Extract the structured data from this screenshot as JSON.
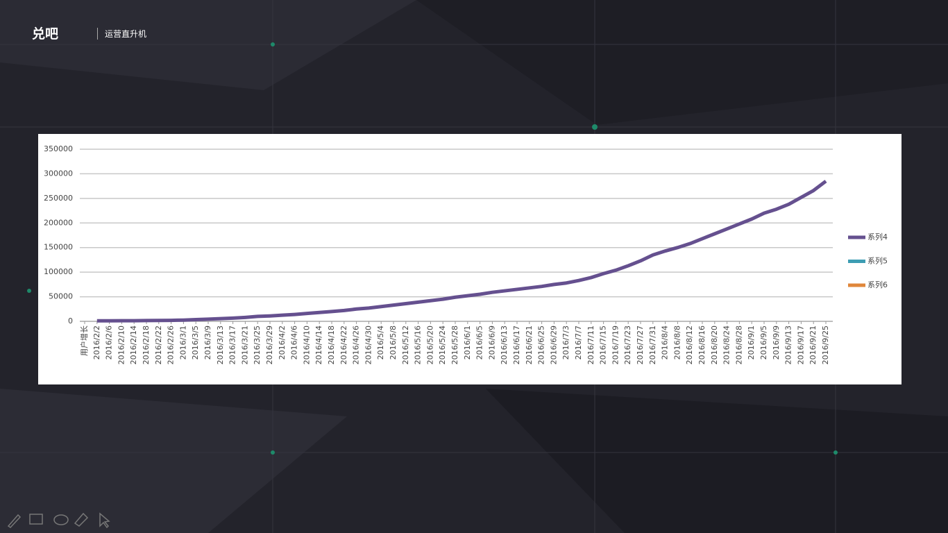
{
  "header": {
    "logo": "兑吧",
    "tagline": "运营直升机"
  },
  "chart_data": {
    "type": "line",
    "categories": [
      "用户增长",
      "2016/2/2",
      "2016/2/6",
      "2016/2/10",
      "2016/2/14",
      "2016/2/18",
      "2016/2/22",
      "2016/2/26",
      "2016/3/1",
      "2016/3/5",
      "2016/3/9",
      "2016/3/13",
      "2016/3/17",
      "2016/3/21",
      "2016/3/25",
      "2016/3/29",
      "2016/4/2",
      "2016/4/6",
      "2016/4/10",
      "2016/4/14",
      "2016/4/18",
      "2016/4/22",
      "2016/4/26",
      "2016/4/30",
      "2016/5/4",
      "2016/5/8",
      "2016/5/12",
      "2016/5/16",
      "2016/5/20",
      "2016/5/24",
      "2016/5/28",
      "2016/6/1",
      "2016/6/5",
      "2016/6/9",
      "2016/6/13",
      "2016/6/17",
      "2016/6/21",
      "2016/6/25",
      "2016/6/29",
      "2016/7/3",
      "2016/7/7",
      "2016/7/11",
      "2016/7/15",
      "2016/7/19",
      "2016/7/23",
      "2016/7/27",
      "2016/7/31",
      "2016/8/4",
      "2016/8/8",
      "2016/8/12",
      "2016/8/16",
      "2016/8/20",
      "2016/8/24",
      "2016/8/28",
      "2016/9/1",
      "2016/9/5",
      "2016/9/9",
      "2016/9/13",
      "2016/9/17",
      "2016/9/21",
      "2016/9/25"
    ],
    "series": [
      {
        "name": "系列4",
        "color": "#65508f",
        "values": [
          null,
          1000,
          1000,
          1200,
          1300,
          1500,
          1700,
          2000,
          2500,
          3500,
          4500,
          5500,
          6500,
          8000,
          10000,
          11000,
          12500,
          14000,
          16000,
          18000,
          20000,
          22000,
          25000,
          27000,
          30000,
          33000,
          36000,
          39000,
          42000,
          45000,
          49000,
          52000,
          55000,
          59000,
          62000,
          65000,
          68000,
          71000,
          75000,
          78000,
          83000,
          89000,
          97000,
          104000,
          113000,
          123000,
          135000,
          143000,
          150000,
          158000,
          168000,
          178000,
          188000,
          198000,
          208000,
          220000,
          228000,
          238000,
          252000,
          266000,
          285000
        ]
      },
      {
        "name": "系列5",
        "color": "#3d9db3",
        "values": [
          null,
          null,
          null,
          null,
          null,
          null,
          null,
          null,
          null,
          null,
          null,
          null,
          null,
          null,
          null,
          null,
          null,
          null,
          null,
          null,
          null,
          null,
          null,
          null,
          null,
          null,
          null,
          null,
          null,
          null,
          null,
          null,
          null,
          null,
          null,
          null,
          null,
          null,
          null,
          null,
          null,
          null,
          null,
          null,
          null,
          null,
          null,
          null,
          null,
          null,
          null,
          null,
          null,
          null,
          null,
          null,
          null,
          null,
          null,
          null,
          null
        ]
      },
      {
        "name": "系列6",
        "color": "#e0873a",
        "values": [
          null,
          null,
          null,
          null,
          null,
          null,
          null,
          null,
          null,
          null,
          null,
          null,
          null,
          null,
          null,
          null,
          null,
          null,
          null,
          null,
          null,
          null,
          null,
          null,
          null,
          null,
          null,
          null,
          null,
          null,
          null,
          null,
          null,
          null,
          null,
          null,
          null,
          null,
          null,
          null,
          null,
          null,
          null,
          null,
          null,
          null,
          null,
          null,
          null,
          null,
          null,
          null,
          null,
          null,
          null,
          null,
          null,
          null,
          null,
          null,
          null
        ]
      }
    ],
    "ylim": [
      0,
      350000
    ],
    "yticks": [
      0,
      50000,
      100000,
      150000,
      200000,
      250000,
      300000,
      350000
    ],
    "grid": true,
    "legend": "right"
  }
}
